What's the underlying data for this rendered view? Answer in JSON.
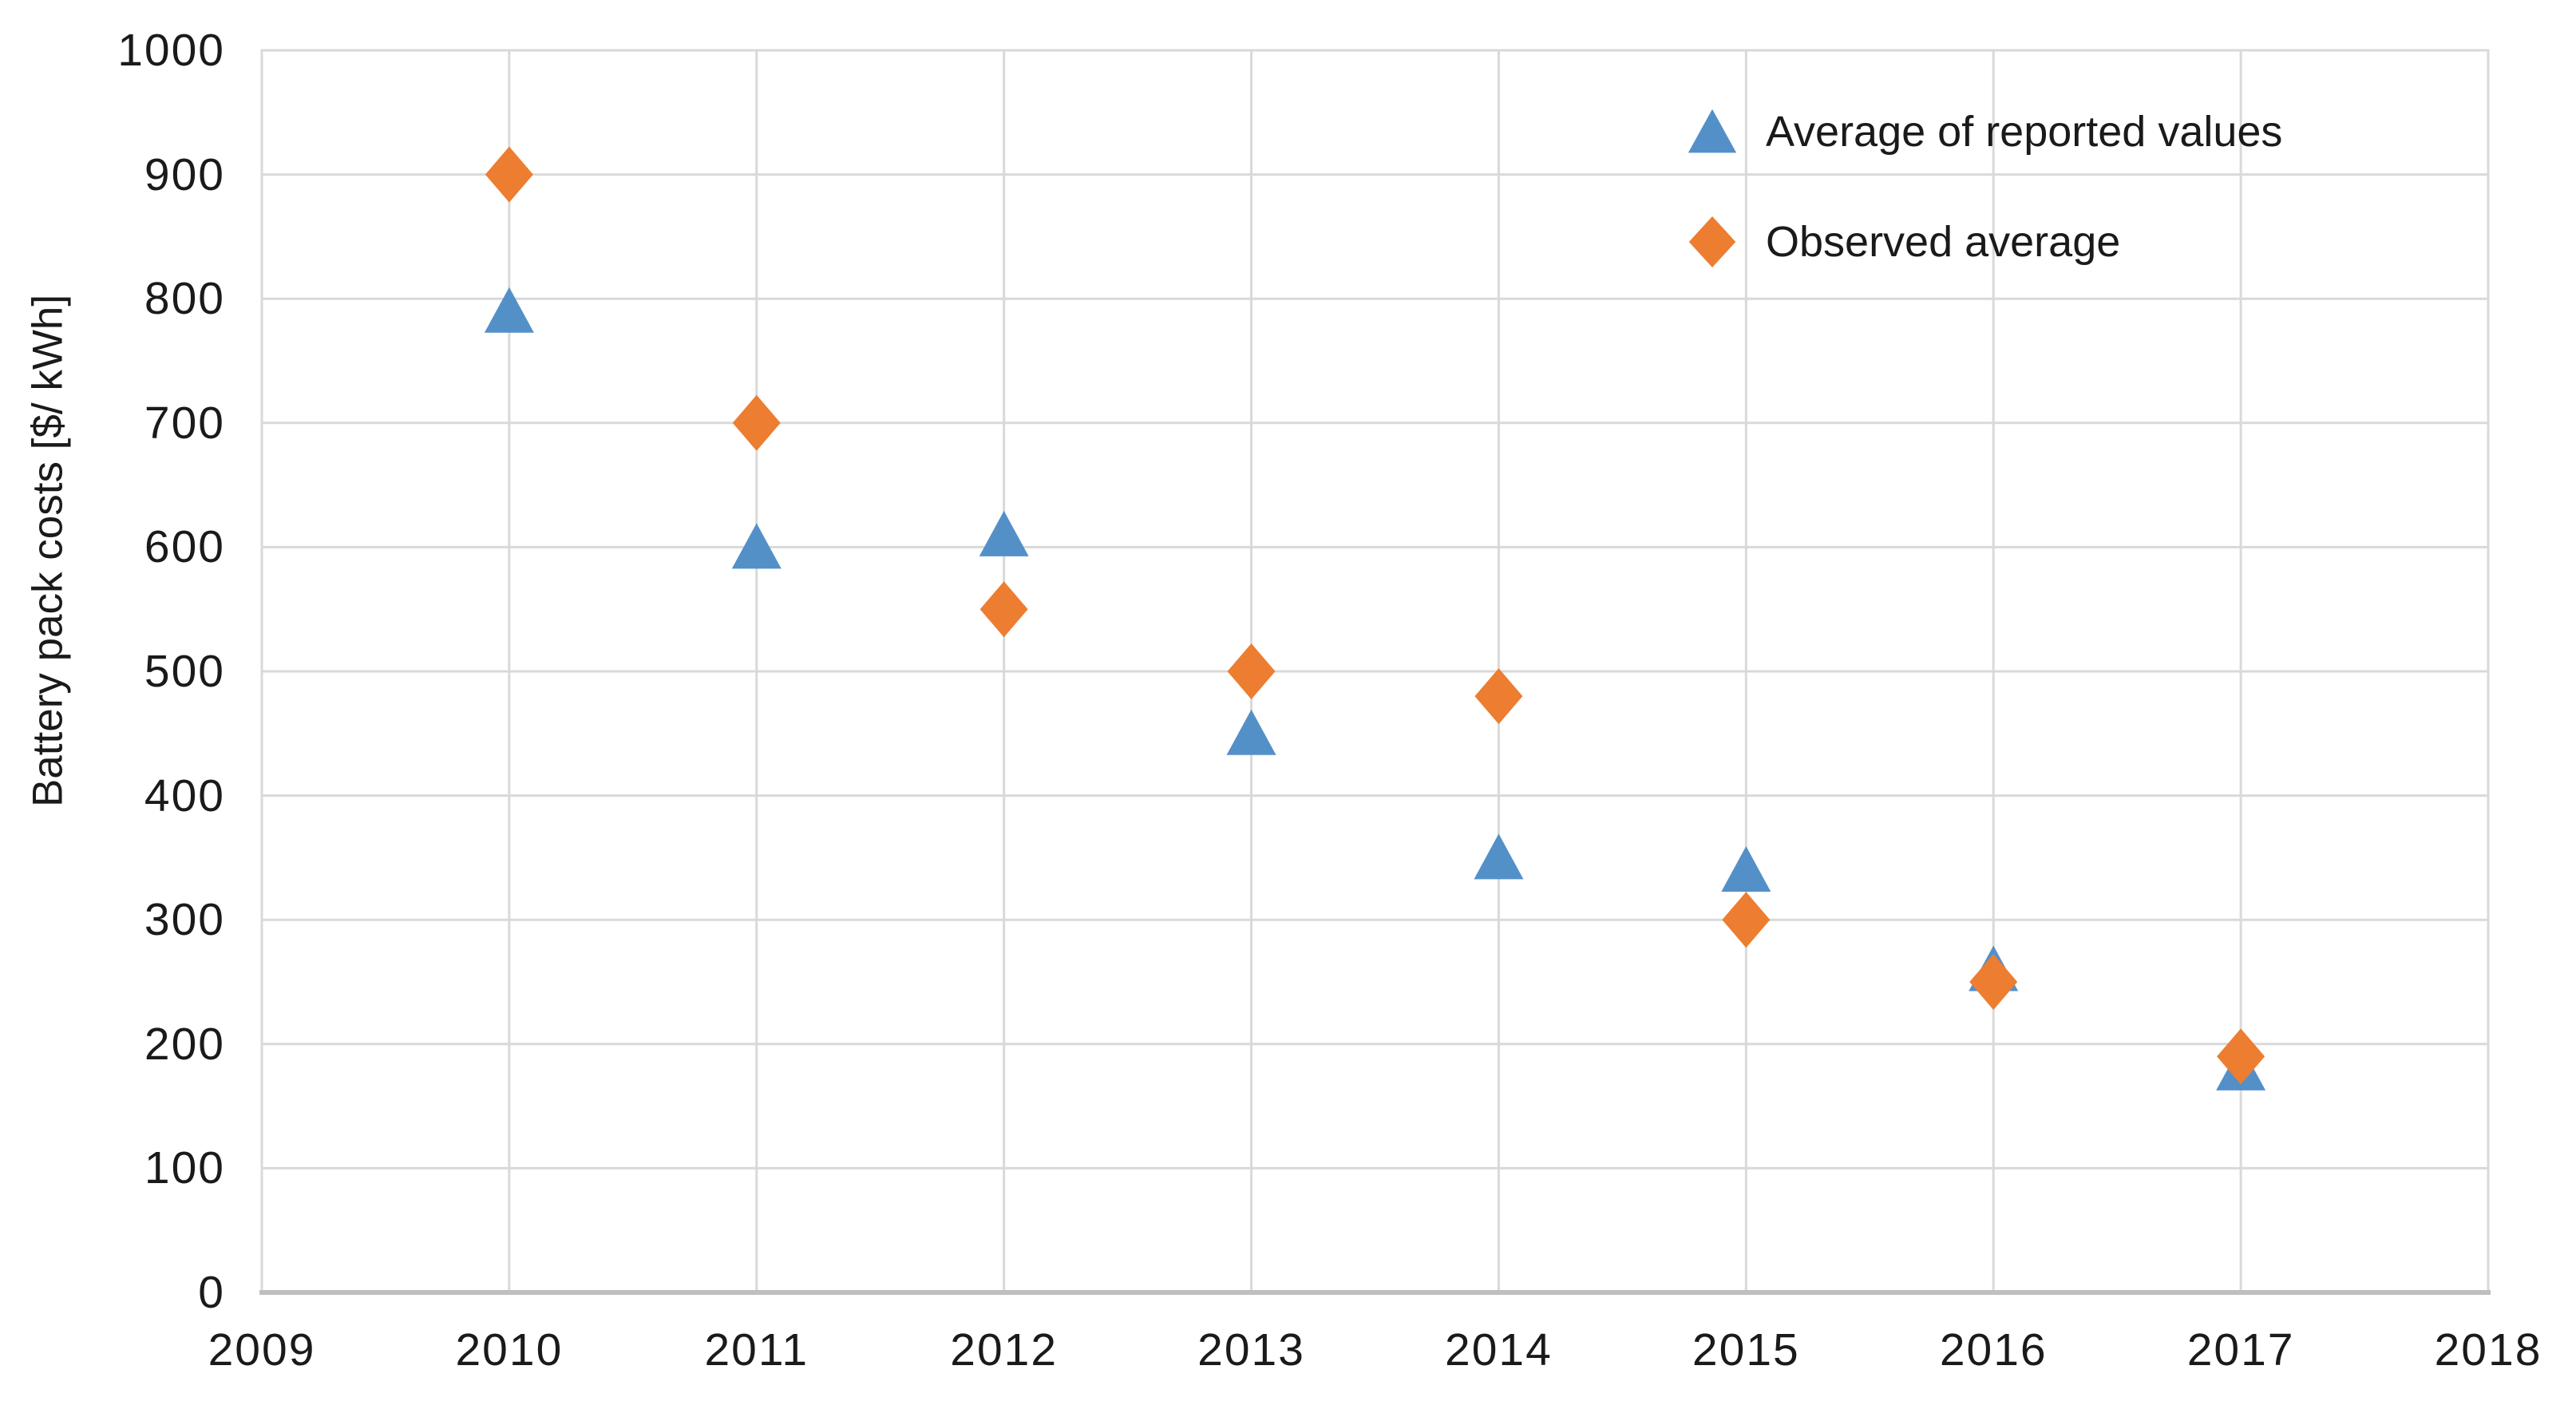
{
  "chart_data": {
    "type": "scatter",
    "title": "",
    "xlabel": "",
    "ylabel": "Battery pack costs [$/ kWh]",
    "xlim": [
      2009,
      2018
    ],
    "ylim": [
      0,
      1000
    ],
    "grid": true,
    "legend_position": "top-right-inside",
    "x_ticks": [
      2009,
      2010,
      2011,
      2012,
      2013,
      2014,
      2015,
      2016,
      2017,
      2018
    ],
    "y_ticks": [
      0,
      100,
      200,
      300,
      400,
      500,
      600,
      700,
      800,
      900,
      1000
    ],
    "categories": [
      2010,
      2011,
      2012,
      2013,
      2014,
      2015,
      2016,
      2017
    ],
    "series": [
      {
        "name": "Average of reported values",
        "marker": "triangle",
        "color": "#5490C8",
        "x": [
          2010,
          2011,
          2012,
          2013,
          2014,
          2015,
          2016,
          2017
        ],
        "y": [
          790,
          600,
          610,
          450,
          350,
          340,
          260,
          180
        ]
      },
      {
        "name": "Observed average",
        "marker": "diamond",
        "color": "#ED7D31",
        "x": [
          2010,
          2011,
          2012,
          2013,
          2014,
          2015,
          2016,
          2017
        ],
        "y": [
          900,
          700,
          550,
          500,
          480,
          300,
          250,
          190
        ]
      }
    ],
    "colors": {
      "gridline": "#D9D9D9",
      "axis_line": "#BFBFBF",
      "text": "#1a1a1a"
    }
  }
}
